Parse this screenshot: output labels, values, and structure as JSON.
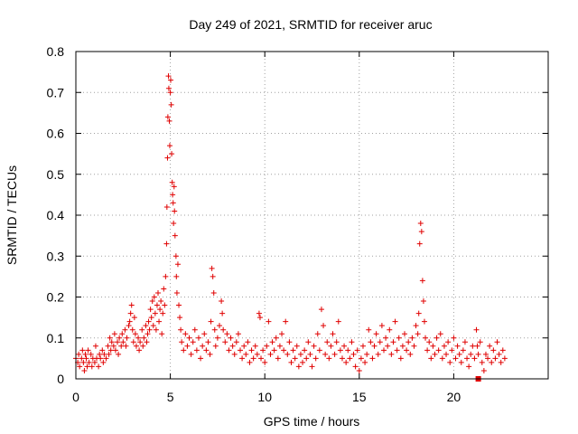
{
  "chart_data": {
    "type": "scatter",
    "title": "Day 249 of 2021, SRMTID for receiver aruc",
    "xlabel": "GPS time / hours",
    "ylabel": "SRMTID / TECUs",
    "xlim": [
      0,
      25
    ],
    "ylim": [
      0,
      0.8
    ],
    "xticks": [
      0,
      5,
      10,
      15,
      20
    ],
    "yticks": [
      0,
      0.1,
      0.2,
      0.3,
      0.4,
      0.5,
      0.6,
      0.7,
      0.8
    ],
    "xtick_labels": [
      "0",
      "5",
      "10",
      "15",
      "20"
    ],
    "ytick_labels": [
      "0",
      "0.1",
      "0.2",
      "0.3",
      "0.4",
      "0.5",
      "0.6",
      "0.7",
      "0.8"
    ],
    "grid": true,
    "marker": "plus",
    "color": "#e00000",
    "series": [
      {
        "name": "SRMTID",
        "points": [
          [
            0.0,
            0.05
          ],
          [
            0.1,
            0.04
          ],
          [
            0.15,
            0.06
          ],
          [
            0.2,
            0.03
          ],
          [
            0.3,
            0.05
          ],
          [
            0.35,
            0.07
          ],
          [
            0.4,
            0.04
          ],
          [
            0.45,
            0.02
          ],
          [
            0.5,
            0.06
          ],
          [
            0.55,
            0.05
          ],
          [
            0.6,
            0.03
          ],
          [
            0.65,
            0.07
          ],
          [
            0.7,
            0.04
          ],
          [
            0.8,
            0.06
          ],
          [
            0.85,
            0.03
          ],
          [
            0.9,
            0.05
          ],
          [
            1.0,
            0.04
          ],
          [
            1.05,
            0.08
          ],
          [
            1.1,
            0.05
          ],
          [
            1.2,
            0.03
          ],
          [
            1.25,
            0.06
          ],
          [
            1.3,
            0.05
          ],
          [
            1.4,
            0.07
          ],
          [
            1.45,
            0.04
          ],
          [
            1.5,
            0.06
          ],
          [
            1.6,
            0.05
          ],
          [
            1.7,
            0.08
          ],
          [
            1.75,
            0.06
          ],
          [
            1.8,
            0.1
          ],
          [
            1.85,
            0.07
          ],
          [
            1.9,
            0.09
          ],
          [
            2.0,
            0.08
          ],
          [
            2.05,
            0.11
          ],
          [
            2.1,
            0.07
          ],
          [
            2.2,
            0.09
          ],
          [
            2.25,
            0.06
          ],
          [
            2.3,
            0.1
          ],
          [
            2.4,
            0.08
          ],
          [
            2.45,
            0.11
          ],
          [
            2.5,
            0.09
          ],
          [
            2.6,
            0.12
          ],
          [
            2.65,
            0.08
          ],
          [
            2.7,
            0.1
          ],
          [
            2.8,
            0.13
          ],
          [
            2.85,
            0.14
          ],
          [
            2.9,
            0.16
          ],
          [
            2.95,
            0.18
          ],
          [
            3.0,
            0.12
          ],
          [
            3.05,
            0.09
          ],
          [
            3.1,
            0.15
          ],
          [
            3.15,
            0.11
          ],
          [
            3.2,
            0.08
          ],
          [
            3.3,
            0.1
          ],
          [
            3.35,
            0.07
          ],
          [
            3.4,
            0.09
          ],
          [
            3.5,
            0.12
          ],
          [
            3.55,
            0.08
          ],
          [
            3.6,
            0.1
          ],
          [
            3.7,
            0.13
          ],
          [
            3.75,
            0.09
          ],
          [
            3.8,
            0.11
          ],
          [
            3.85,
            0.14
          ],
          [
            3.9,
            0.12
          ],
          [
            3.95,
            0.17
          ],
          [
            4.0,
            0.15
          ],
          [
            4.05,
            0.19
          ],
          [
            4.1,
            0.13
          ],
          [
            4.15,
            0.2
          ],
          [
            4.2,
            0.16
          ],
          [
            4.25,
            0.12
          ],
          [
            4.3,
            0.18
          ],
          [
            4.35,
            0.21
          ],
          [
            4.4,
            0.14
          ],
          [
            4.45,
            0.17
          ],
          [
            4.5,
            0.19
          ],
          [
            4.55,
            0.11
          ],
          [
            4.6,
            0.16
          ],
          [
            4.65,
            0.22
          ],
          [
            4.7,
            0.18
          ],
          [
            4.75,
            0.25
          ],
          [
            4.8,
            0.33
          ],
          [
            4.82,
            0.42
          ],
          [
            4.85,
            0.54
          ],
          [
            4.87,
            0.64
          ],
          [
            4.9,
            0.74
          ],
          [
            4.92,
            0.71
          ],
          [
            4.95,
            0.63
          ],
          [
            4.97,
            0.57
          ],
          [
            5.0,
            0.7
          ],
          [
            5.02,
            0.73
          ],
          [
            5.05,
            0.67
          ],
          [
            5.07,
            0.55
          ],
          [
            5.1,
            0.48
          ],
          [
            5.12,
            0.45
          ],
          [
            5.15,
            0.43
          ],
          [
            5.17,
            0.38
          ],
          [
            5.2,
            0.47
          ],
          [
            5.22,
            0.41
          ],
          [
            5.25,
            0.35
          ],
          [
            5.3,
            0.3
          ],
          [
            5.32,
            0.25
          ],
          [
            5.35,
            0.21
          ],
          [
            5.4,
            0.28
          ],
          [
            5.45,
            0.18
          ],
          [
            5.5,
            0.15
          ],
          [
            5.55,
            0.12
          ],
          [
            5.6,
            0.09
          ],
          [
            5.7,
            0.07
          ],
          [
            5.8,
            0.11
          ],
          [
            5.9,
            0.08
          ],
          [
            6.0,
            0.1
          ],
          [
            6.1,
            0.06
          ],
          [
            6.2,
            0.09
          ],
          [
            6.3,
            0.12
          ],
          [
            6.4,
            0.07
          ],
          [
            6.5,
            0.1
          ],
          [
            6.6,
            0.05
          ],
          [
            6.7,
            0.08
          ],
          [
            6.8,
            0.11
          ],
          [
            6.9,
            0.07
          ],
          [
            7.0,
            0.09
          ],
          [
            7.1,
            0.06
          ],
          [
            7.15,
            0.14
          ],
          [
            7.2,
            0.27
          ],
          [
            7.25,
            0.25
          ],
          [
            7.3,
            0.21
          ],
          [
            7.35,
            0.12
          ],
          [
            7.4,
            0.08
          ],
          [
            7.5,
            0.1
          ],
          [
            7.6,
            0.13
          ],
          [
            7.7,
            0.19
          ],
          [
            7.75,
            0.16
          ],
          [
            7.8,
            0.12
          ],
          [
            7.9,
            0.09
          ],
          [
            8.0,
            0.11
          ],
          [
            8.1,
            0.07
          ],
          [
            8.2,
            0.1
          ],
          [
            8.3,
            0.08
          ],
          [
            8.4,
            0.06
          ],
          [
            8.5,
            0.09
          ],
          [
            8.6,
            0.11
          ],
          [
            8.7,
            0.07
          ],
          [
            8.8,
            0.05
          ],
          [
            8.9,
            0.08
          ],
          [
            9.0,
            0.06
          ],
          [
            9.1,
            0.09
          ],
          [
            9.2,
            0.04
          ],
          [
            9.3,
            0.07
          ],
          [
            9.4,
            0.05
          ],
          [
            9.5,
            0.08
          ],
          [
            9.6,
            0.06
          ],
          [
            9.7,
            0.16
          ],
          [
            9.75,
            0.15
          ],
          [
            9.8,
            0.05
          ],
          [
            9.9,
            0.07
          ],
          [
            10.0,
            0.04
          ],
          [
            10.1,
            0.08
          ],
          [
            10.2,
            0.14
          ],
          [
            10.3,
            0.06
          ],
          [
            10.4,
            0.09
          ],
          [
            10.5,
            0.07
          ],
          [
            10.6,
            0.1
          ],
          [
            10.7,
            0.05
          ],
          [
            10.8,
            0.08
          ],
          [
            10.9,
            0.11
          ],
          [
            11.0,
            0.07
          ],
          [
            11.1,
            0.14
          ],
          [
            11.2,
            0.06
          ],
          [
            11.3,
            0.09
          ],
          [
            11.4,
            0.04
          ],
          [
            11.5,
            0.07
          ],
          [
            11.6,
            0.05
          ],
          [
            11.7,
            0.08
          ],
          [
            11.8,
            0.03
          ],
          [
            11.9,
            0.06
          ],
          [
            12.0,
            0.04
          ],
          [
            12.1,
            0.07
          ],
          [
            12.2,
            0.05
          ],
          [
            12.3,
            0.09
          ],
          [
            12.4,
            0.06
          ],
          [
            12.5,
            0.03
          ],
          [
            12.6,
            0.08
          ],
          [
            12.7,
            0.05
          ],
          [
            12.8,
            0.11
          ],
          [
            12.9,
            0.07
          ],
          [
            13.0,
            0.17
          ],
          [
            13.1,
            0.13
          ],
          [
            13.2,
            0.06
          ],
          [
            13.3,
            0.09
          ],
          [
            13.4,
            0.05
          ],
          [
            13.5,
            0.08
          ],
          [
            13.6,
            0.11
          ],
          [
            13.7,
            0.06
          ],
          [
            13.8,
            0.09
          ],
          [
            13.9,
            0.14
          ],
          [
            14.0,
            0.07
          ],
          [
            14.1,
            0.05
          ],
          [
            14.2,
            0.08
          ],
          [
            14.3,
            0.04
          ],
          [
            14.4,
            0.07
          ],
          [
            14.5,
            0.05
          ],
          [
            14.6,
            0.09
          ],
          [
            14.7,
            0.06
          ],
          [
            14.8,
            0.03
          ],
          [
            14.9,
            0.07
          ],
          [
            15.0,
            0.02
          ],
          [
            15.1,
            0.05
          ],
          [
            15.2,
            0.08
          ],
          [
            15.3,
            0.04
          ],
          [
            15.4,
            0.06
          ],
          [
            15.5,
            0.12
          ],
          [
            15.6,
            0.09
          ],
          [
            15.7,
            0.05
          ],
          [
            15.8,
            0.08
          ],
          [
            15.9,
            0.11
          ],
          [
            16.0,
            0.06
          ],
          [
            16.1,
            0.09
          ],
          [
            16.2,
            0.13
          ],
          [
            16.3,
            0.07
          ],
          [
            16.4,
            0.1
          ],
          [
            16.5,
            0.08
          ],
          [
            16.6,
            0.12
          ],
          [
            16.7,
            0.06
          ],
          [
            16.8,
            0.09
          ],
          [
            16.9,
            0.14
          ],
          [
            17.0,
            0.07
          ],
          [
            17.1,
            0.1
          ],
          [
            17.2,
            0.05
          ],
          [
            17.3,
            0.08
          ],
          [
            17.4,
            0.11
          ],
          [
            17.5,
            0.07
          ],
          [
            17.6,
            0.09
          ],
          [
            17.7,
            0.06
          ],
          [
            17.8,
            0.1
          ],
          [
            17.9,
            0.08
          ],
          [
            18.0,
            0.13
          ],
          [
            18.1,
            0.11
          ],
          [
            18.15,
            0.16
          ],
          [
            18.2,
            0.33
          ],
          [
            18.25,
            0.38
          ],
          [
            18.3,
            0.36
          ],
          [
            18.35,
            0.24
          ],
          [
            18.4,
            0.19
          ],
          [
            18.45,
            0.14
          ],
          [
            18.5,
            0.1
          ],
          [
            18.6,
            0.07
          ],
          [
            18.7,
            0.09
          ],
          [
            18.8,
            0.05
          ],
          [
            18.9,
            0.08
          ],
          [
            19.0,
            0.06
          ],
          [
            19.1,
            0.1
          ],
          [
            19.2,
            0.07
          ],
          [
            19.3,
            0.11
          ],
          [
            19.4,
            0.05
          ],
          [
            19.5,
            0.08
          ],
          [
            19.6,
            0.06
          ],
          [
            19.7,
            0.09
          ],
          [
            19.8,
            0.04
          ],
          [
            19.9,
            0.07
          ],
          [
            20.0,
            0.1
          ],
          [
            20.1,
            0.05
          ],
          [
            20.2,
            0.08
          ],
          [
            20.3,
            0.06
          ],
          [
            20.4,
            0.04
          ],
          [
            20.5,
            0.07
          ],
          [
            20.6,
            0.09
          ],
          [
            20.7,
            0.05
          ],
          [
            20.8,
            0.03
          ],
          [
            20.9,
            0.06
          ],
          [
            21.0,
            0.08
          ],
          [
            21.1,
            0.05
          ],
          [
            21.2,
            0.12
          ],
          [
            21.25,
            0.08
          ],
          [
            21.3,
            0.06
          ],
          [
            21.4,
            0.09
          ],
          [
            21.5,
            0.04
          ],
          [
            21.6,
            0.02
          ],
          [
            21.7,
            0.06
          ],
          [
            21.8,
            0.05
          ],
          [
            21.9,
            0.08
          ],
          [
            22.0,
            0.04
          ],
          [
            22.1,
            0.07
          ],
          [
            22.2,
            0.05
          ],
          [
            22.3,
            0.09
          ],
          [
            22.4,
            0.06
          ],
          [
            22.5,
            0.04
          ],
          [
            22.6,
            0.07
          ],
          [
            22.7,
            0.05
          ]
        ]
      }
    ],
    "square_marker": [
      21.3,
      0.0
    ]
  }
}
